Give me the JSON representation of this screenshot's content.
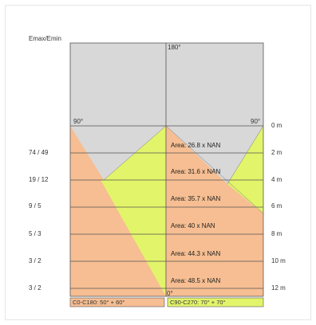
{
  "header": {
    "ratio_title": "Emax/Emin"
  },
  "diagram": {
    "angles": {
      "top": "180°",
      "left": "90°",
      "right": "90°",
      "bottom": "0°"
    },
    "rows": [
      {
        "ratio": "74 / 49",
        "area": "Area: 26.8  x  NAN",
        "distance": "2 m"
      },
      {
        "ratio": "19 / 12",
        "area": "Area: 31.6  x  NAN",
        "distance": "4 m"
      },
      {
        "ratio": "9 / 5",
        "area": "Area: 35.7  x  NAN",
        "distance": "6 m"
      },
      {
        "ratio": "5 / 3",
        "area": "Area: 40  x  NAN",
        "distance": "8 m"
      },
      {
        "ratio": "3 / 2",
        "area": "Area: 44.3  x  NAN",
        "distance": "10 m"
      },
      {
        "ratio": "3 / 2",
        "area": "Area: 48.5  x  NAN",
        "distance": "12 m"
      }
    ],
    "zero_distance": "0 m",
    "legend": {
      "c0_c180": "C0-C180: 50° + 60°",
      "c90_c270": "C90-C270: 70° + 70°"
    },
    "colors": {
      "cone_c0_c180": "#f6be92",
      "cone_c90_c270": "#e2f46a",
      "sky": "#d8d8d8",
      "grid": "#555555"
    }
  }
}
